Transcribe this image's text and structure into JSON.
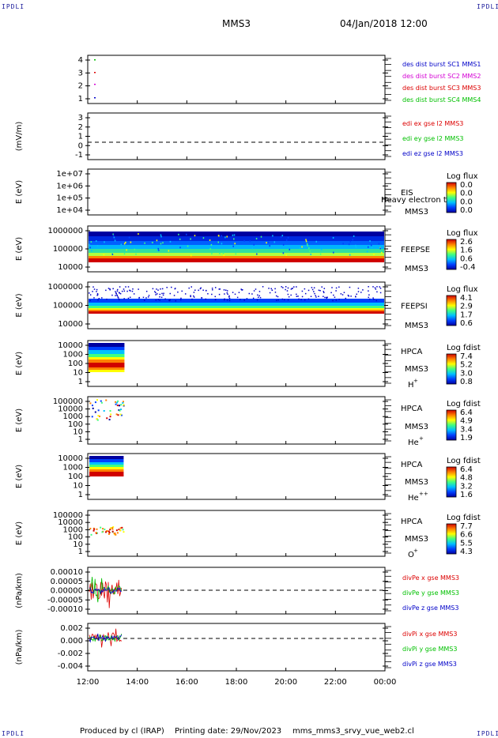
{
  "header": {
    "corner_label": "IPDLI",
    "spacecraft": "MMS3",
    "datetime": "04/Jan/2018 12:00"
  },
  "footer": {
    "produced_by": "Produced by cl (IRAP)",
    "printing_date": "Printing date: 29/Nov/2023",
    "script_name": "mms_mms3_srvy_vue_web2.cl"
  },
  "colors": {
    "mms1": "#0000c8",
    "mms2": "#d400d4",
    "mms3": "#dc0000",
    "mms4": "#00c000",
    "x": "#dc0000",
    "y": "#00c000",
    "z": "#0000c8"
  },
  "chart_data": [
    {
      "type": "scatter",
      "name": "des dist burst",
      "ylabel": "",
      "yticks": [
        "4",
        "3",
        "2",
        "1"
      ],
      "ylim": [
        0.5,
        4.5
      ],
      "legend": [
        {
          "label": "des dist burst SC1 MMS1",
          "color": "#0000c8"
        },
        {
          "label": "des dist burst SC2 MMS2",
          "color": "#d400d4"
        },
        {
          "label": "des dist burst SC3 MMS3",
          "color": "#dc0000"
        },
        {
          "label": "des dist burst SC4 MMS4",
          "color": "#00c000"
        }
      ]
    },
    {
      "type": "line",
      "name": "edi",
      "ylabel": "(mV/m)",
      "yticks": [
        "3",
        "2",
        "1",
        "0",
        "-1"
      ],
      "ylim": [
        -1.5,
        3.2
      ],
      "legend": [
        {
          "label": "edi ex gse l2 MMS3",
          "color": "#dc0000"
        },
        {
          "label": "edi ey gse l2 MMS3",
          "color": "#00c000"
        },
        {
          "label": "edi ez gse l2 MMS3",
          "color": "#0000c8"
        }
      ]
    },
    {
      "type": "heatmap",
      "name": "EIS",
      "ylabel": "E (eV)",
      "yticks": [
        "1e+07",
        "1e+06",
        "1e+05",
        "1e+04"
      ],
      "instrument": "EIS",
      "subtitle": "Heavy electron to",
      "spacecraft": "MMS3",
      "colorbar_title": "Log flux",
      "colorbar_ticks": [
        "0.0",
        "0.0",
        "0.0",
        "0.0"
      ]
    },
    {
      "type": "heatmap",
      "name": "FEEPSE",
      "ylabel": "E (eV)",
      "yticks": [
        "1000000",
        "100000",
        "10000"
      ],
      "instrument": "FEEPSE",
      "spacecraft": "MMS3",
      "colorbar_title": "Log flux",
      "colorbar_ticks": [
        "2.6",
        "1.6",
        "0.6",
        "-0.4"
      ]
    },
    {
      "type": "heatmap",
      "name": "FEEPSI",
      "ylabel": "E (eV)",
      "yticks": [
        "1000000",
        "100000",
        "10000"
      ],
      "instrument": "FEEPSI",
      "spacecraft": "MMS3",
      "colorbar_title": "Log flux",
      "colorbar_ticks": [
        "4.1",
        "2.9",
        "1.7",
        "0.6"
      ]
    },
    {
      "type": "heatmap",
      "name": "HPCA H+",
      "ylabel": "E (eV)",
      "yticks": [
        "10000",
        "1000",
        "100",
        "10",
        "1"
      ],
      "instrument": "HPCA",
      "spacecraft": "MMS3",
      "species": "H",
      "charge": "+",
      "colorbar_title": "Log fdist",
      "colorbar_ticks": [
        "7.4",
        "5.2",
        "3.0",
        "0.8"
      ]
    },
    {
      "type": "heatmap",
      "name": "HPCA He+",
      "ylabel": "E (eV)",
      "yticks": [
        "100000",
        "10000",
        "1000",
        "100",
        "10",
        "1"
      ],
      "instrument": "HPCA",
      "spacecraft": "MMS3",
      "species": "He",
      "charge": "+",
      "colorbar_title": "Log fdist",
      "colorbar_ticks": [
        "6.4",
        "4.9",
        "3.4",
        "1.9"
      ]
    },
    {
      "type": "heatmap",
      "name": "HPCA He++",
      "ylabel": "E (eV)",
      "yticks": [
        "10000",
        "1000",
        "100",
        "10",
        "1"
      ],
      "instrument": "HPCA",
      "spacecraft": "MMS3",
      "species": "He",
      "charge": "++",
      "colorbar_title": "Log fdist",
      "colorbar_ticks": [
        "6.4",
        "4.8",
        "3.2",
        "1.6"
      ]
    },
    {
      "type": "heatmap",
      "name": "HPCA O+",
      "ylabel": "E (eV)",
      "yticks": [
        "100000",
        "10000",
        "1000",
        "100",
        "10",
        "1"
      ],
      "instrument": "HPCA",
      "spacecraft": "MMS3",
      "species": "O",
      "charge": "+",
      "colorbar_title": "Log fdist",
      "colorbar_ticks": [
        "7.7",
        "6.6",
        "5.5",
        "4.3"
      ]
    },
    {
      "type": "line",
      "name": "divPe",
      "ylabel": "(nPa/km)",
      "yticks": [
        "0.00010",
        "0.00005",
        "0.00000",
        "-0.00005",
        "-0.00010"
      ],
      "legend": [
        {
          "label": "divPe x gse MMS3",
          "color": "#dc0000"
        },
        {
          "label": "divPe y gse MMS3",
          "color": "#00c000"
        },
        {
          "label": "divPe z gse MMS3",
          "color": "#0000c8"
        }
      ]
    },
    {
      "type": "line",
      "name": "divPi",
      "ylabel": "(nPa/km)",
      "yticks": [
        "0.002",
        "0.000",
        "-0.002",
        "-0.004"
      ],
      "legend": [
        {
          "label": "divPi x gse MMS3",
          "color": "#dc0000"
        },
        {
          "label": "divPi y gse MMS3",
          "color": "#00c000"
        },
        {
          "label": "divPi z gse MMS3",
          "color": "#0000c8"
        }
      ]
    }
  ],
  "x_axis": {
    "ticks": [
      "12:00",
      "14:00",
      "16:00",
      "18:00",
      "20:00",
      "22:00",
      "00:00"
    ],
    "xlim_hours": [
      12,
      24
    ]
  }
}
